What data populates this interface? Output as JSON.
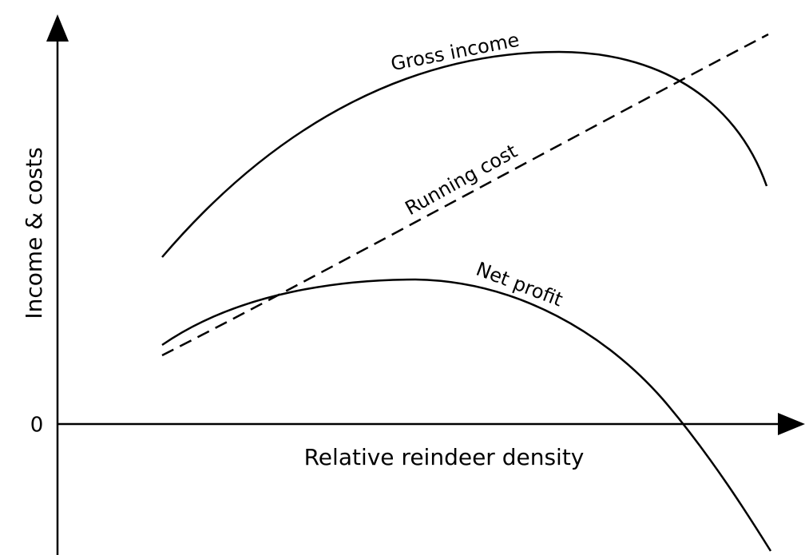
{
  "axes": {
    "y_label": "Income & costs",
    "x_label": "Relative reindeer density",
    "zero_label": "0"
  },
  "curves": [
    {
      "label": "Gross income"
    },
    {
      "label": "Running cost"
    },
    {
      "label": "Net profit"
    }
  ]
}
